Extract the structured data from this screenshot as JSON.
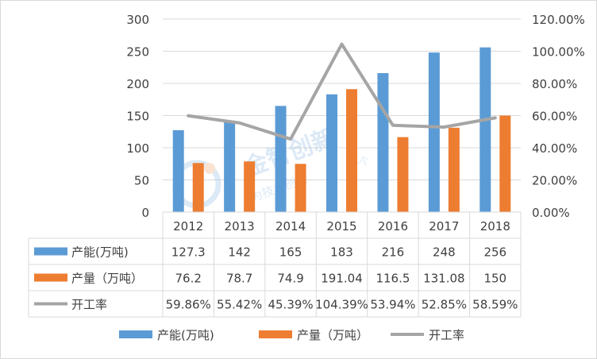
{
  "chart_data": {
    "type": "bar",
    "categories": [
      "2012",
      "2013",
      "2014",
      "2015",
      "2016",
      "2017",
      "2018"
    ],
    "series": [
      {
        "name": "产能(万吨)",
        "type": "bar",
        "axis": "left",
        "color": "#5B9BD5",
        "values": [
          127.3,
          142,
          165,
          183,
          216,
          248,
          256
        ],
        "labels": [
          "127.3",
          "142",
          "165",
          "183",
          "216",
          "248",
          "256"
        ]
      },
      {
        "name": "产量（万吨）",
        "type": "bar",
        "axis": "left",
        "color": "#ED7D31",
        "values": [
          76.2,
          78.7,
          74.9,
          191.04,
          116.5,
          131.08,
          150
        ],
        "labels": [
          "76.2",
          "78.7",
          "74.9",
          "191.04",
          "116.5",
          "131.08",
          "150"
        ]
      },
      {
        "name": "开工率",
        "type": "line",
        "axis": "right",
        "color": "#A5A5A5",
        "values": [
          59.86,
          55.42,
          45.39,
          104.39,
          53.94,
          52.85,
          58.59
        ],
        "labels": [
          "59.86%",
          "55.42%",
          "45.39%",
          "104.39%",
          "53.94%",
          "52.85%",
          "58.59%"
        ]
      }
    ],
    "ylim": [
      0,
      300
    ],
    "y_ticks": [
      "0",
      "50",
      "100",
      "150",
      "200",
      "250",
      "300"
    ],
    "y2lim": [
      0,
      120
    ],
    "y2_ticks": [
      "0.00%",
      "20.00%",
      "40.00%",
      "60.00%",
      "80.00%",
      "100.00%",
      "120.00%"
    ],
    "grid": true,
    "legend": "bottom",
    "data_table": true
  },
  "watermark": {
    "brand": "金智创新",
    "slogan": "为技术创新",
    "slogan2": "一个"
  }
}
